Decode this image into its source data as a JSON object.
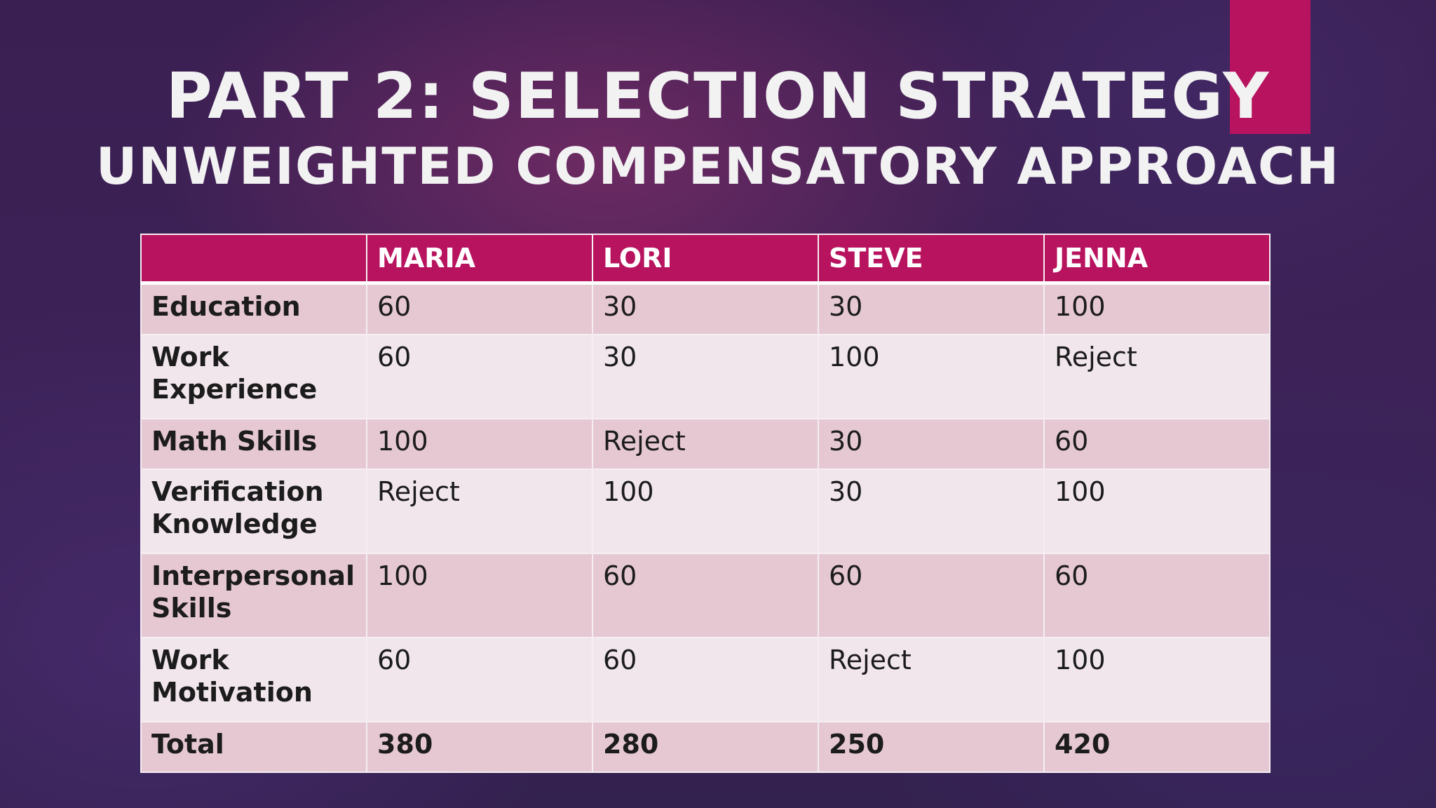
{
  "slide": {
    "title": "PART 2: SELECTION STRATEGY",
    "subtitle": "UNWEIGHTED COMPENSATORY APPROACH"
  },
  "colors": {
    "accent": "#b8135f",
    "highlight": "#e60000",
    "row_dark": "#e6c8d3",
    "row_light": "#f2e6ed"
  },
  "table": {
    "columns": [
      "",
      "MARIA",
      "LORI",
      "STEVE",
      "JENNA"
    ],
    "rows": [
      {
        "label": "Education",
        "values": [
          "60",
          "30",
          "30",
          "100"
        ]
      },
      {
        "label": "Work Experience",
        "values": [
          "60",
          "30",
          "100",
          "Reject"
        ]
      },
      {
        "label": "Math Skills",
        "values": [
          "100",
          "Reject",
          "30",
          "60"
        ]
      },
      {
        "label": "Verification Knowledge",
        "values": [
          "Reject",
          "100",
          "30",
          "100"
        ]
      },
      {
        "label": "Interpersonal Skills",
        "values": [
          "100",
          "60",
          "60",
          "60"
        ]
      },
      {
        "label": "Work Motivation",
        "values": [
          "60",
          "60",
          "Reject",
          "100"
        ]
      }
    ],
    "total": {
      "label": "Total",
      "values": [
        "380",
        "280",
        "250",
        "420"
      ]
    }
  }
}
